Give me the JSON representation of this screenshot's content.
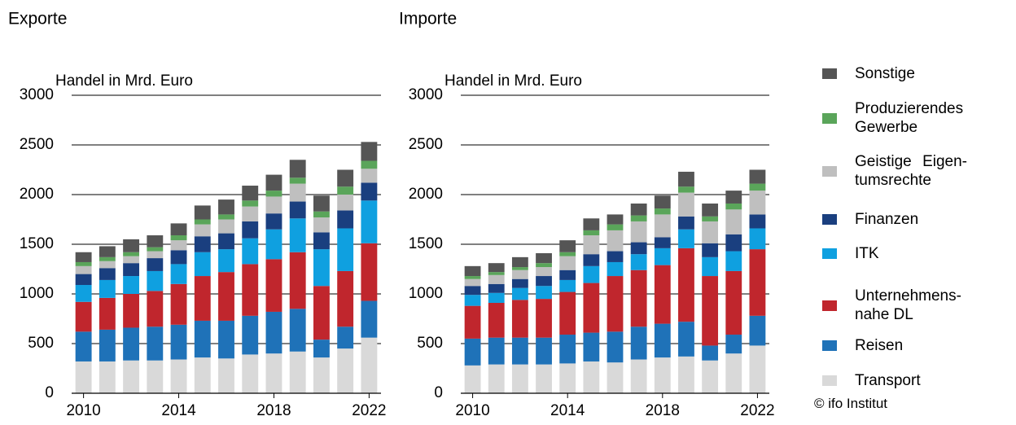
{
  "chart_data": [
    {
      "type": "stacked_bar",
      "title": "Exporte",
      "y_label": "Handel in Mrd. Euro",
      "x": [
        2010,
        2011,
        2012,
        2013,
        2014,
        2015,
        2016,
        2017,
        2018,
        2019,
        2020,
        2021,
        2022
      ],
      "xlim": [
        2009.5,
        2022.5
      ],
      "xticks": [
        2010,
        2014,
        2018,
        2022
      ],
      "ylim": [
        0,
        3000
      ],
      "yticks": [
        0,
        500,
        1000,
        1500,
        2000,
        2500,
        3000
      ],
      "grid": true,
      "series": [
        {
          "name": "Transport",
          "color": "#d9d9d9",
          "values": [
            320,
            320,
            330,
            330,
            340,
            360,
            350,
            390,
            400,
            420,
            360,
            450,
            560
          ]
        },
        {
          "name": "Reisen",
          "color": "#1f72b8",
          "values": [
            300,
            320,
            330,
            340,
            350,
            370,
            380,
            390,
            420,
            430,
            180,
            220,
            370
          ]
        },
        {
          "name": "Unterneh­mens-nahe DL",
          "color": "#c0262d",
          "values": [
            300,
            320,
            340,
            360,
            410,
            450,
            490,
            520,
            530,
            570,
            540,
            560,
            580
          ]
        },
        {
          "name": "ITK",
          "color": "#0fa0e0",
          "values": [
            170,
            180,
            180,
            200,
            200,
            240,
            230,
            260,
            300,
            340,
            370,
            430,
            430
          ]
        },
        {
          "name": "Finanzen",
          "color": "#1a3f7f",
          "values": [
            110,
            120,
            130,
            130,
            140,
            160,
            160,
            170,
            160,
            170,
            170,
            180,
            180
          ]
        },
        {
          "name": "Geistige Eigen­tumsrechte",
          "color": "#bfbfbf",
          "values": [
            80,
            70,
            70,
            70,
            100,
            120,
            140,
            150,
            170,
            180,
            150,
            160,
            140
          ]
        },
        {
          "name": "Produzieren­des Gewerbe",
          "color": "#5aa55a",
          "values": [
            40,
            40,
            40,
            40,
            50,
            50,
            50,
            60,
            60,
            60,
            60,
            80,
            80
          ]
        },
        {
          "name": "Sonstige",
          "color": "#555555",
          "values": [
            100,
            110,
            130,
            120,
            120,
            140,
            150,
            150,
            160,
            180,
            160,
            170,
            190
          ]
        }
      ]
    },
    {
      "type": "stacked_bar",
      "title": "Importe",
      "y_label": "Handel in Mrd. Euro",
      "x": [
        2010,
        2011,
        2012,
        2013,
        2014,
        2015,
        2016,
        2017,
        2018,
        2019,
        2020,
        2021,
        2022
      ],
      "xlim": [
        2009.5,
        2022.5
      ],
      "xticks": [
        2010,
        2014,
        2018,
        2022
      ],
      "ylim": [
        0,
        3000
      ],
      "yticks": [
        0,
        500,
        1000,
        1500,
        2000,
        2500,
        3000
      ],
      "grid": true,
      "series": [
        {
          "name": "Transport",
          "color": "#d9d9d9",
          "values": [
            280,
            290,
            290,
            290,
            300,
            320,
            310,
            340,
            360,
            370,
            330,
            400,
            480
          ]
        },
        {
          "name": "Reisen",
          "color": "#1f72b8",
          "values": [
            270,
            270,
            270,
            270,
            290,
            290,
            310,
            330,
            340,
            350,
            150,
            190,
            300
          ]
        },
        {
          "name": "Unterneh­mens-nahe DL",
          "color": "#c0262d",
          "values": [
            330,
            350,
            380,
            390,
            430,
            500,
            560,
            570,
            590,
            740,
            700,
            640,
            670
          ]
        },
        {
          "name": "ITK",
          "color": "#0fa0e0",
          "values": [
            110,
            100,
            120,
            130,
            120,
            170,
            140,
            160,
            170,
            190,
            190,
            200,
            210
          ]
        },
        {
          "name": "Finanzen",
          "color": "#1a3f7f",
          "values": [
            90,
            90,
            90,
            100,
            100,
            120,
            110,
            120,
            110,
            130,
            140,
            170,
            140
          ]
        },
        {
          "name": "Geistige Eigen­tumsrechte",
          "color": "#bfbfbf",
          "values": [
            70,
            90,
            90,
            90,
            140,
            190,
            210,
            210,
            230,
            240,
            220,
            250,
            240
          ]
        },
        {
          "name": "Produzieren­des Gewerbe",
          "color": "#5aa55a",
          "values": [
            30,
            30,
            30,
            40,
            40,
            50,
            60,
            60,
            60,
            60,
            50,
            60,
            70
          ]
        },
        {
          "name": "Sonstige",
          "color": "#555555",
          "values": [
            100,
            90,
            100,
            100,
            120,
            120,
            100,
            120,
            130,
            150,
            130,
            130,
            140
          ]
        }
      ]
    }
  ],
  "note": "© ifo Institut"
}
